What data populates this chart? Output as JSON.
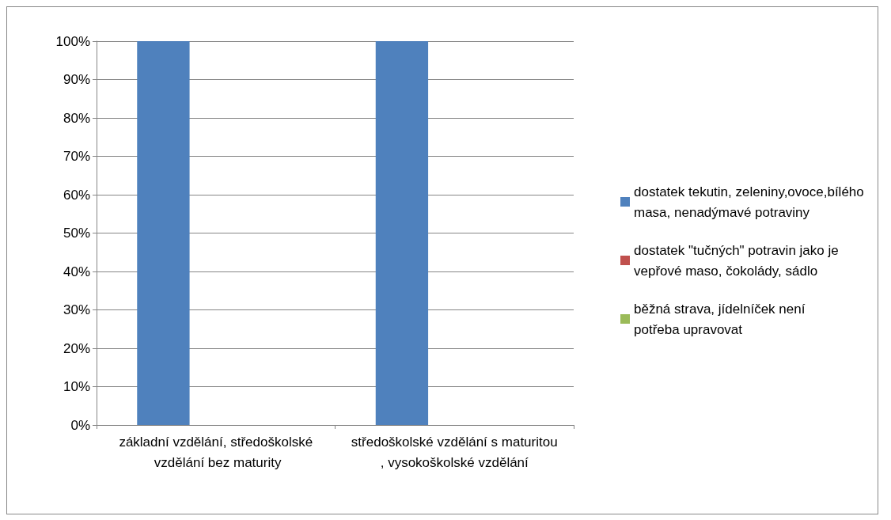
{
  "chart_data": {
    "type": "bar",
    "categories": [
      "základní vzdělání, středoškolské vzdělání bez maturity",
      "středoškolské vzdělání s maturitou, vysokoškolské vzdělání"
    ],
    "series": [
      {
        "name": "dostatek tekutin, zeleniny,ovoce,bílého masa, nenadýmavé potraviny",
        "color": "#4f81bd",
        "values": [
          100,
          100
        ]
      },
      {
        "name": "dostatek \"tučných\" potravin jako je vepřové maso, čokolády, sádlo",
        "color": "#c0504d",
        "values": [
          0,
          0
        ]
      },
      {
        "name": "běžná strava, jídelníček není potřeba upravovat",
        "color": "#9bbb59",
        "values": [
          0,
          0
        ]
      }
    ],
    "ylim": [
      0,
      100
    ],
    "yticks": [
      {
        "value": 0,
        "label": "0%"
      },
      {
        "value": 10,
        "label": "10%"
      },
      {
        "value": 20,
        "label": "20%"
      },
      {
        "value": 30,
        "label": "30%"
      },
      {
        "value": 40,
        "label": "40%"
      },
      {
        "value": 50,
        "label": "50%"
      },
      {
        "value": 60,
        "label": "60%"
      },
      {
        "value": 70,
        "label": "70%"
      },
      {
        "value": 80,
        "label": "80%"
      },
      {
        "value": 90,
        "label": "90%"
      },
      {
        "value": 100,
        "label": "100%"
      }
    ],
    "grid": "y",
    "legend": "right"
  }
}
